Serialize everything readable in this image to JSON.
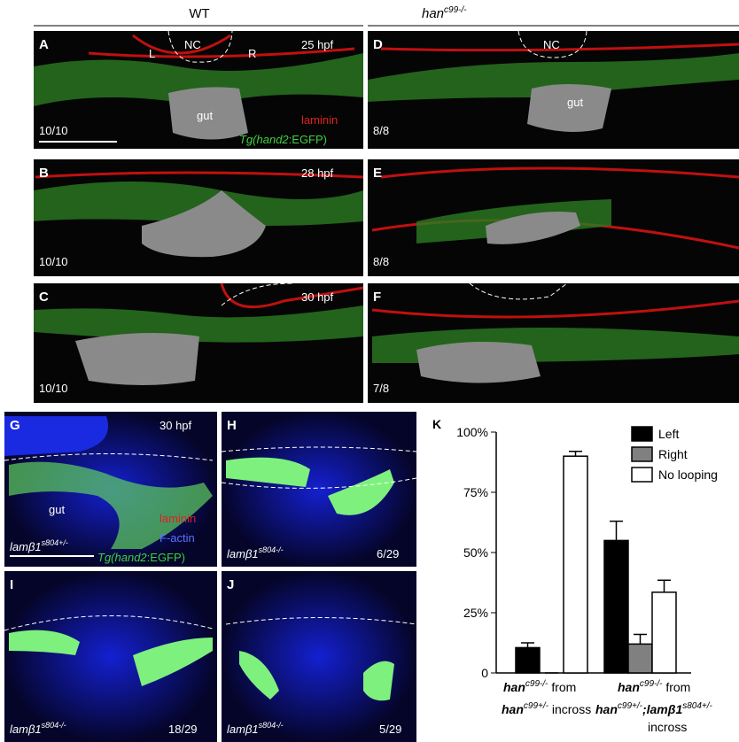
{
  "header": {
    "left": "WT",
    "right": {
      "text": "han",
      "sup": "c99-/-"
    }
  },
  "panels": {
    "A": {
      "letter": "A",
      "stage": "25 hpf",
      "nc": "NC",
      "left": "L",
      "right": "R",
      "gut": "gut",
      "stain": "laminin",
      "reporter": {
        "italic": "Tg(hand2",
        "plain": ":EGFP)"
      },
      "count": "10/10"
    },
    "B": {
      "letter": "B",
      "stage": "28 hpf",
      "count": "10/10"
    },
    "C": {
      "letter": "C",
      "stage": "30 hpf",
      "count": "10/10"
    },
    "D": {
      "letter": "D",
      "nc": "NC",
      "gut": "gut",
      "count": "8/8"
    },
    "E": {
      "letter": "E",
      "count": "8/8"
    },
    "F": {
      "letter": "F",
      "count": "7/8"
    },
    "G": {
      "letter": "G",
      "stage": "30 hpf",
      "gut": "gut",
      "stain": "laminin",
      "actin": "F-actin",
      "reporter": {
        "italic": "Tg(hand2",
        "plain": ":EGFP)"
      },
      "genotype": {
        "text": "lamβ1",
        "sup": "s804+/-"
      }
    },
    "H": {
      "letter": "H",
      "genotype": {
        "text": "lamβ1",
        "sup": "s804-/-"
      },
      "count": "6/29"
    },
    "I": {
      "letter": "I",
      "genotype": {
        "text": "lamβ1",
        "sup": "s804-/-"
      },
      "count": "18/29"
    },
    "J": {
      "letter": "J",
      "genotype": {
        "text": "lamβ1",
        "sup": "s804-/-"
      },
      "count": "5/29"
    }
  },
  "chart_data": {
    "type": "bar",
    "label": "K",
    "categories": [
      [
        [
          {
            "text": "han"
          },
          {
            "text": "c99-/-",
            "sup": true
          },
          {
            "text": " from"
          }
        ],
        [
          {
            "text": "han"
          },
          {
            "text": "c99+/-",
            "sup": true
          },
          {
            "text": " incross"
          }
        ]
      ],
      [
        [
          {
            "text": "han"
          },
          {
            "text": "c99-/-",
            "sup": true
          },
          {
            "text": " from"
          }
        ],
        [
          {
            "text": "han"
          },
          {
            "text": "c99+/-",
            "sup": true
          },
          {
            "text": ";lamβ1"
          },
          {
            "text": "s804+/-",
            "sup": true
          }
        ],
        [
          {
            "text": "incross"
          }
        ]
      ]
    ],
    "series": [
      {
        "name": "Left",
        "color": "#000000",
        "values": [
          10.5,
          55
        ],
        "errors": [
          2,
          8
        ]
      },
      {
        "name": "Right",
        "color": "#808080",
        "values": [
          0,
          12
        ],
        "errors": [
          0,
          4
        ]
      },
      {
        "name": "No looping",
        "color": "#ffffff",
        "values": [
          90,
          33.5
        ],
        "errors": [
          2,
          5
        ]
      }
    ],
    "ylim": [
      0,
      100
    ],
    "yticks": [
      0,
      {
        "value": 25,
        "label": "25%"
      },
      {
        "value": 50,
        "label": "50%"
      },
      {
        "value": 75,
        "label": "75%"
      },
      {
        "value": 100,
        "label": "100%"
      }
    ],
    "legend": "top-right"
  }
}
